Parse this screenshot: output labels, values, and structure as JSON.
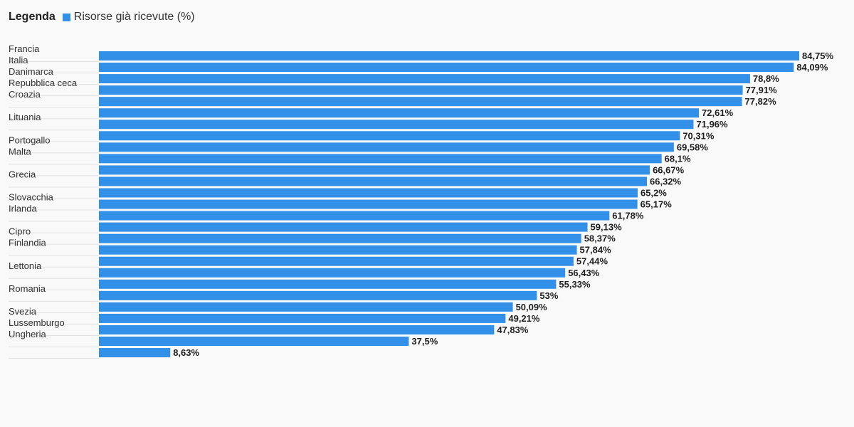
{
  "legend": {
    "title": "Legenda",
    "series_label": "Risorse già ricevute (%)"
  },
  "colors": {
    "bar": "#3390e9",
    "value_text": "#1f1f1f",
    "category_text": "#333333",
    "gridline": "#e2e2e2"
  },
  "chart_data": {
    "type": "bar",
    "orientation": "horizontal",
    "categories": [
      "Francia",
      "Italia",
      "Danimarca",
      "Repubblica ceca",
      "Croazia",
      "",
      "Lituania",
      "",
      "Portogallo",
      "Malta",
      "",
      "Grecia",
      "",
      "Slovacchia",
      "Irlanda",
      "",
      "Cipro",
      "Finlandia",
      "",
      "Lettonia",
      "",
      "Romania",
      "",
      "Svezia",
      "Lussemburgo",
      "Ungheria",
      ""
    ],
    "values": [
      84.75,
      84.09,
      78.8,
      77.91,
      77.82,
      72.61,
      71.96,
      70.31,
      69.58,
      68.1,
      66.67,
      66.32,
      65.2,
      65.17,
      61.78,
      59.13,
      58.37,
      57.84,
      57.44,
      56.43,
      55.33,
      53,
      50.09,
      49.21,
      47.83,
      37.5,
      8.63
    ],
    "value_labels": [
      "84,75%",
      "84,09%",
      "78,8%",
      "77,91%",
      "77,82%",
      "72,61%",
      "71,96%",
      "70,31%",
      "69,58%",
      "68,1%",
      "66,67%",
      "66,32%",
      "65,2%",
      "65,17%",
      "61,78%",
      "59,13%",
      "58,37%",
      "57,84%",
      "57,44%",
      "56,43%",
      "55,33%",
      "53%",
      "50,09%",
      "49,21%",
      "47,83%",
      "37,5%",
      "8,63%"
    ],
    "series": [
      {
        "name": "Risorse già ricevute (%)"
      }
    ],
    "xlim": [
      0,
      84.75
    ],
    "grid": false,
    "legend_position": "top-left"
  }
}
